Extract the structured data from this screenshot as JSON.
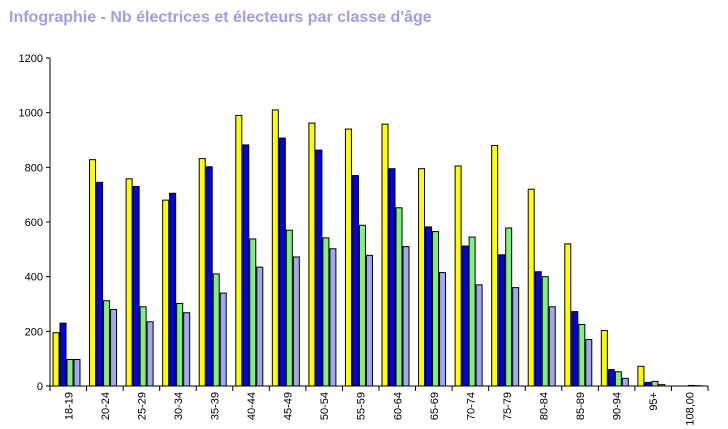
{
  "chart_data": {
    "type": "bar",
    "title": "Infographie - Nb électrices et électeurs par classe d'âge",
    "xlabel": "",
    "ylabel": "",
    "ylim": [
      0,
      1200
    ],
    "yticks": [
      0,
      200,
      400,
      600,
      800,
      1000,
      1200
    ],
    "grid": false,
    "legend": "none",
    "categories": [
      "18-19",
      "20-24",
      "25-29",
      "30-34",
      "35-39",
      "40-44",
      "45-49",
      "50-54",
      "55-59",
      "60-64",
      "65-69",
      "70-74",
      "75-79",
      "80-84",
      "85-89",
      "90-94",
      "95+",
      "108,00"
    ],
    "series": [
      {
        "color": "#ffff00",
        "values": [
          195,
          828,
          758,
          680,
          832,
          990,
          1010,
          962,
          940,
          958,
          795,
          805,
          880,
          720,
          520,
          203,
          72,
          0
        ]
      },
      {
        "color": "#0000e0",
        "values": [
          230,
          745,
          730,
          705,
          802,
          882,
          907,
          863,
          770,
          795,
          582,
          512,
          480,
          418,
          272,
          60,
          13,
          0
        ]
      },
      {
        "color": "#80f080",
        "values": [
          97,
          312,
          290,
          302,
          410,
          538,
          570,
          542,
          588,
          652,
          565,
          545,
          578,
          400,
          225,
          52,
          17,
          2
        ]
      },
      {
        "color": "#a0a8f0",
        "values": [
          97,
          280,
          235,
          268,
          340,
          435,
          472,
          502,
          478,
          510,
          415,
          370,
          360,
          290,
          170,
          28,
          5,
          1
        ]
      }
    ]
  }
}
